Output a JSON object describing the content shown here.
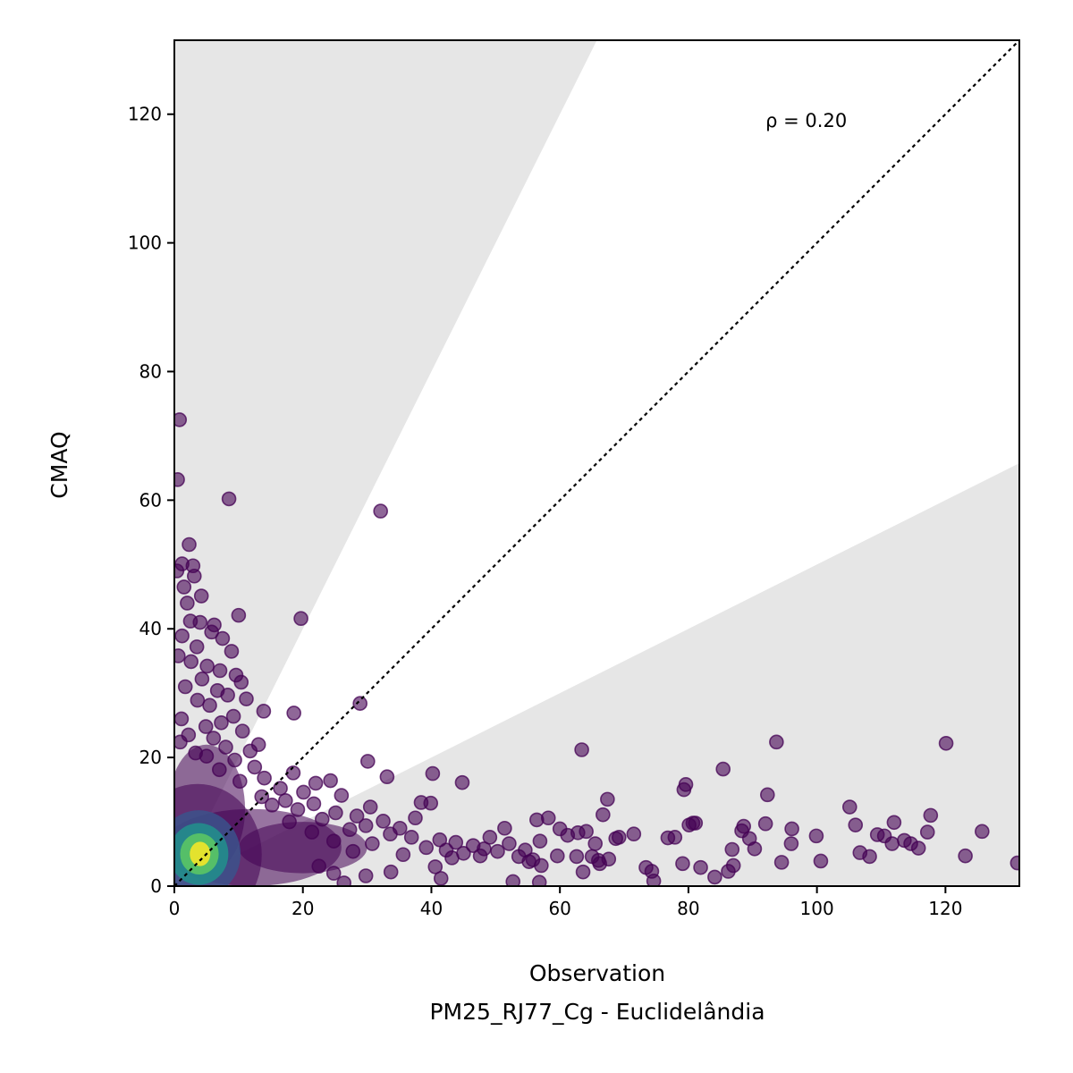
{
  "chart_data": {
    "type": "scatter",
    "xlabel": "Observation",
    "subtitle": "PM25_RJ77_Cg - Euclidelândia",
    "ylabel": "CMAQ",
    "xlim": [
      0,
      131.5
    ],
    "ylim": [
      0,
      131.5
    ],
    "x_ticks": [
      0,
      20,
      40,
      60,
      80,
      100,
      120
    ],
    "y_ticks": [
      0,
      20,
      40,
      60,
      80,
      100,
      120
    ],
    "annotation": "ρ = 0.20",
    "annotation_pos": [
      92,
      118
    ],
    "reference_line": "1:1",
    "shaded_bands": [
      {
        "from_ratio": 2,
        "to_ratio": "inf",
        "color": "#e6e6e6"
      },
      {
        "from_ratio": 0,
        "to_ratio": 0.5,
        "color": "#e6e6e6"
      }
    ],
    "point_color": "#440154",
    "point_opacity": 0.6,
    "density_colors": [
      "#440154",
      "#3b528b",
      "#21918c",
      "#5ec962",
      "#fde725"
    ],
    "points": [
      [
        0.8,
        72.5
      ],
      [
        0.5,
        63.2
      ],
      [
        8.5,
        60.2
      ],
      [
        32.1,
        58.3
      ],
      [
        2.3,
        53.1
      ],
      [
        1.2,
        50.1
      ],
      [
        2.9,
        49.8
      ],
      [
        0.4,
        49.0
      ],
      [
        3.1,
        48.2
      ],
      [
        1.5,
        46.5
      ],
      [
        4.2,
        45.1
      ],
      [
        2.0,
        44.0
      ],
      [
        10.0,
        42.1
      ],
      [
        19.7,
        41.6
      ],
      [
        2.5,
        41.2
      ],
      [
        4.0,
        41.0
      ],
      [
        6.2,
        40.6
      ],
      [
        5.8,
        39.5
      ],
      [
        1.2,
        38.9
      ],
      [
        7.5,
        38.5
      ],
      [
        3.5,
        37.2
      ],
      [
        8.9,
        36.5
      ],
      [
        0.6,
        35.8
      ],
      [
        2.6,
        34.9
      ],
      [
        5.1,
        34.2
      ],
      [
        7.1,
        33.5
      ],
      [
        9.6,
        32.8
      ],
      [
        4.3,
        32.2
      ],
      [
        10.4,
        31.7
      ],
      [
        1.7,
        31.0
      ],
      [
        6.7,
        30.4
      ],
      [
        8.3,
        29.7
      ],
      [
        11.2,
        29.1
      ],
      [
        28.9,
        28.4
      ],
      [
        3.6,
        28.9
      ],
      [
        5.5,
        28.1
      ],
      [
        13.9,
        27.2
      ],
      [
        18.6,
        26.9
      ],
      [
        9.2,
        26.4
      ],
      [
        1.1,
        26.0
      ],
      [
        7.3,
        25.4
      ],
      [
        4.9,
        24.8
      ],
      [
        10.6,
        24.1
      ],
      [
        2.2,
        23.5
      ],
      [
        6.1,
        23.0
      ],
      [
        13.1,
        22.0
      ],
      [
        0.9,
        22.4
      ],
      [
        8.0,
        21.6
      ],
      [
        11.8,
        21.0
      ],
      [
        3.3,
        20.7
      ],
      [
        30.1,
        19.4
      ],
      [
        5.0,
        20.2
      ],
      [
        9.4,
        19.6
      ],
      [
        12.5,
        18.5
      ],
      [
        7.0,
        18.1
      ],
      [
        18.5,
        17.6
      ],
      [
        33.1,
        17.0
      ],
      [
        40.2,
        17.5
      ],
      [
        14.0,
        16.8
      ],
      [
        10.2,
        16.3
      ],
      [
        22.0,
        16.0
      ],
      [
        44.8,
        16.1
      ],
      [
        24.3,
        16.4
      ],
      [
        16.5,
        15.2
      ],
      [
        20.1,
        14.6
      ],
      [
        26.0,
        14.1
      ],
      [
        13.6,
        13.9
      ],
      [
        17.3,
        13.3
      ],
      [
        21.7,
        12.8
      ],
      [
        38.4,
        13.0
      ],
      [
        39.9,
        12.9
      ],
      [
        30.5,
        12.3
      ],
      [
        15.2,
        12.6
      ],
      [
        19.2,
        11.9
      ],
      [
        25.1,
        11.4
      ],
      [
        28.4,
        10.9
      ],
      [
        32.5,
        10.1
      ],
      [
        37.5,
        10.6
      ],
      [
        23.0,
        10.4
      ],
      [
        17.9,
        10.0
      ],
      [
        29.8,
        9.4
      ],
      [
        35.1,
        9.0
      ],
      [
        27.3,
        8.8
      ],
      [
        21.4,
        8.4
      ],
      [
        33.6,
        8.1
      ],
      [
        36.9,
        7.6
      ],
      [
        41.3,
        7.2
      ],
      [
        43.8,
        6.8
      ],
      [
        24.8,
        7.0
      ],
      [
        46.5,
        6.3
      ],
      [
        30.8,
        6.6
      ],
      [
        39.2,
        6.0
      ],
      [
        42.3,
        5.6
      ],
      [
        45.0,
        5.1
      ],
      [
        27.8,
        5.4
      ],
      [
        35.6,
        4.9
      ],
      [
        48.2,
        5.8
      ],
      [
        49.1,
        7.6
      ],
      [
        51.4,
        9.0
      ],
      [
        52.1,
        6.6
      ],
      [
        53.6,
        4.6
      ],
      [
        54.6,
        5.6
      ],
      [
        55.2,
        3.8
      ],
      [
        55.8,
        4.1
      ],
      [
        57.1,
        3.2
      ],
      [
        56.4,
        10.3
      ],
      [
        58.2,
        10.6
      ],
      [
        56.9,
        7.0
      ],
      [
        60.0,
        8.9
      ],
      [
        61.2,
        7.9
      ],
      [
        59.6,
        4.7
      ],
      [
        62.6,
        4.6
      ],
      [
        62.8,
        8.3
      ],
      [
        63.4,
        21.2
      ],
      [
        64.1,
        8.5
      ],
      [
        65.5,
        6.6
      ],
      [
        65.0,
        4.6
      ],
      [
        66.7,
        11.1
      ],
      [
        67.4,
        13.5
      ],
      [
        66.0,
        4.0
      ],
      [
        68.7,
        7.4
      ],
      [
        69.2,
        7.6
      ],
      [
        71.5,
        8.1
      ],
      [
        73.4,
        2.9
      ],
      [
        74.3,
        2.3
      ],
      [
        74.6,
        0.8
      ],
      [
        76.8,
        7.5
      ],
      [
        77.9,
        7.6
      ],
      [
        79.3,
        15.0
      ],
      [
        79.6,
        15.8
      ],
      [
        80.7,
        9.8
      ],
      [
        80.1,
        9.5
      ],
      [
        81.1,
        9.8
      ],
      [
        81.9,
        2.9
      ],
      [
        79.1,
        3.5
      ],
      [
        84.1,
        1.4
      ],
      [
        85.4,
        18.2
      ],
      [
        86.2,
        2.3
      ],
      [
        87.0,
        3.2
      ],
      [
        86.8,
        5.7
      ],
      [
        88.6,
        9.3
      ],
      [
        88.3,
        8.6
      ],
      [
        89.5,
        7.4
      ],
      [
        90.3,
        5.8
      ],
      [
        92.0,
        9.7
      ],
      [
        92.3,
        14.2
      ],
      [
        93.7,
        22.4
      ],
      [
        94.5,
        3.7
      ],
      [
        96.1,
        8.9
      ],
      [
        96.0,
        6.6
      ],
      [
        99.9,
        7.8
      ],
      [
        100.6,
        3.9
      ],
      [
        105.1,
        12.3
      ],
      [
        106.0,
        9.5
      ],
      [
        106.7,
        5.2
      ],
      [
        108.2,
        4.6
      ],
      [
        109.4,
        8.0
      ],
      [
        110.5,
        7.8
      ],
      [
        111.7,
        6.6
      ],
      [
        112.0,
        9.9
      ],
      [
        113.6,
        7.1
      ],
      [
        114.6,
        6.6
      ],
      [
        115.8,
        5.9
      ],
      [
        117.2,
        8.4
      ],
      [
        117.7,
        11.0
      ],
      [
        120.1,
        22.2
      ],
      [
        123.1,
        4.7
      ],
      [
        125.7,
        8.5
      ],
      [
        131.2,
        3.6
      ],
      [
        52.7,
        0.7
      ],
      [
        56.8,
        0.6
      ],
      [
        63.6,
        2.2
      ],
      [
        66.2,
        3.5
      ],
      [
        67.6,
        4.2
      ],
      [
        47.6,
        4.7
      ],
      [
        50.3,
        5.4
      ],
      [
        43.2,
        4.4
      ],
      [
        40.6,
        3.0
      ],
      [
        41.5,
        1.2
      ],
      [
        33.7,
        2.2
      ],
      [
        29.8,
        1.6
      ],
      [
        26.4,
        0.5
      ],
      [
        24.8,
        2.0
      ],
      [
        22.5,
        3.1
      ]
    ],
    "density": [
      {
        "x": 3.6,
        "y": 4.9,
        "rx": 10,
        "ry": 11,
        "level": 0.0
      },
      {
        "x": 12.0,
        "y": 6.0,
        "rx": 14,
        "ry": 6,
        "level": 0.0
      },
      {
        "x": 5.0,
        "y": 12.0,
        "rx": 6,
        "ry": 10,
        "level": 0.0
      },
      {
        "x": 20.0,
        "y": 6.0,
        "rx": 10,
        "ry": 4,
        "level": 0.0
      },
      {
        "x": 3.8,
        "y": 5.0,
        "rx": 6.5,
        "ry": 6.8,
        "level": 0.25
      },
      {
        "x": 3.8,
        "y": 5.0,
        "rx": 4.6,
        "ry": 4.8,
        "level": 0.5
      },
      {
        "x": 3.9,
        "y": 5.0,
        "rx": 3.0,
        "ry": 3.2,
        "level": 0.75
      },
      {
        "x": 4.0,
        "y": 5.0,
        "rx": 1.6,
        "ry": 1.9,
        "level": 1.0
      }
    ]
  }
}
